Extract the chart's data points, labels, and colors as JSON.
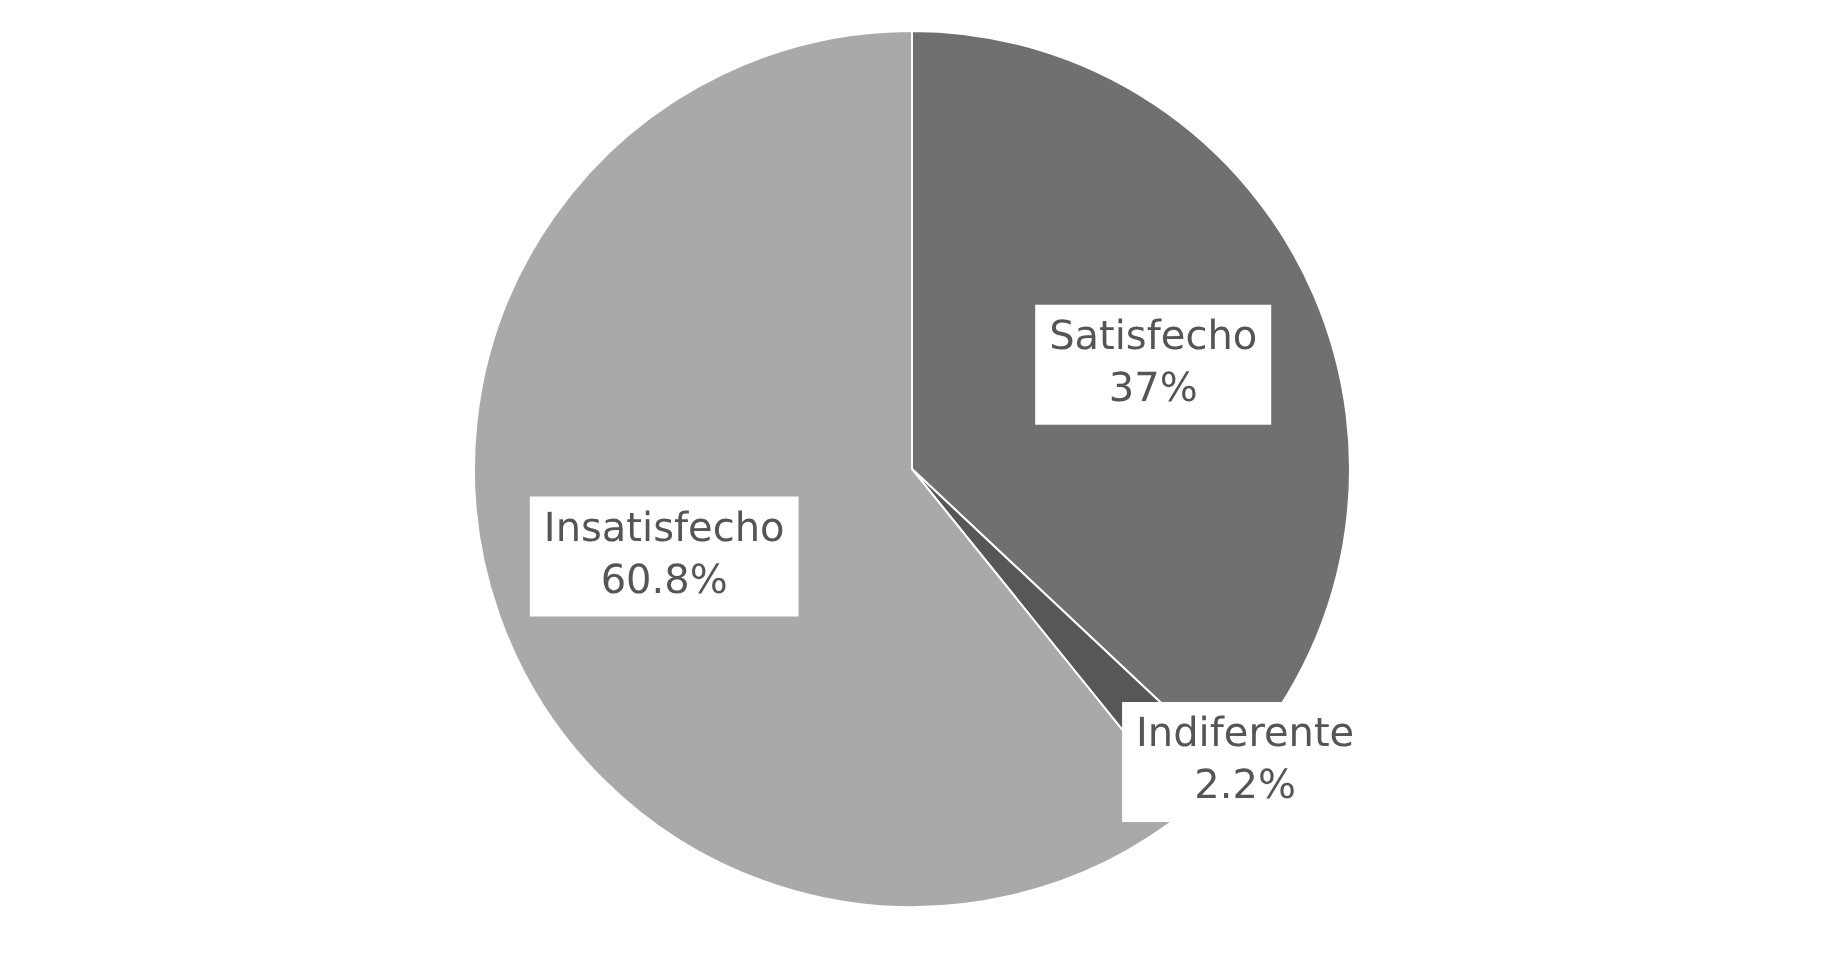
{
  "chart_data": {
    "type": "pie",
    "categories": [
      "Satisfecho",
      "Indiferente",
      "Insatisfecho"
    ],
    "values": [
      37,
      2.2,
      60.8
    ],
    "colors": [
      "#707070",
      "#575757",
      "#a9a9a9"
    ],
    "value_labels": [
      "37%",
      "2.2%",
      "60.8%"
    ],
    "legend": false
  }
}
